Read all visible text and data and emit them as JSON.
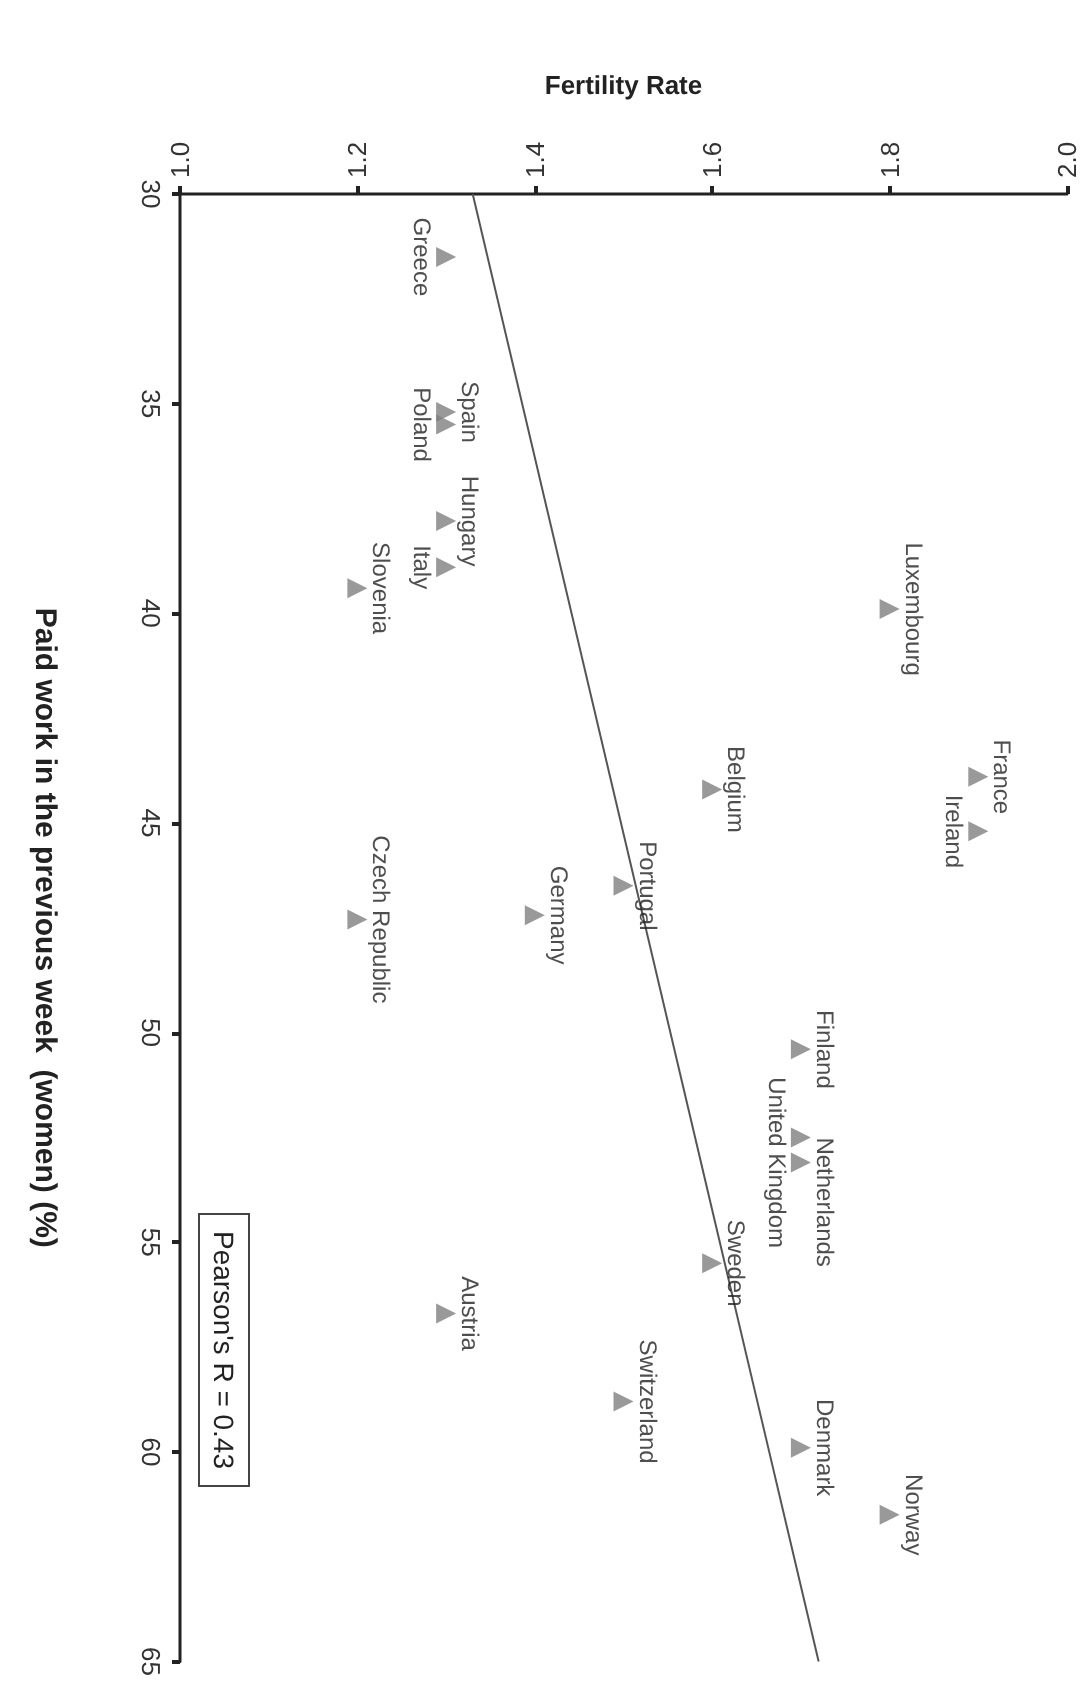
{
  "chart_data": {
    "type": "scatter",
    "xlabel": "Fertility Rate",
    "ylabel": "Paid work in the previous week  (women) (%)",
    "xlim": [
      1,
      2
    ],
    "xticks": [
      {
        "value": 1,
        "label": "1.0"
      },
      1.2,
      1.4,
      1.6,
      1.8,
      {
        "value": 2,
        "label": "2.0"
      }
    ],
    "ylim": [
      65,
      30
    ],
    "yticks": [
      30,
      35,
      40,
      45,
      50,
      55,
      60,
      65
    ],
    "grid": false,
    "marker": "triangle",
    "series": [
      {
        "color": "#7f7f7f",
        "x": [
          1.3,
          1.3,
          1.3,
          1.3,
          1.3,
          1.2,
          1.8,
          1.9,
          1.9,
          1.6,
          1.5,
          1.4,
          1.2,
          1.7,
          1.7,
          1.7,
          1.6,
          1.3,
          1.5,
          1.7,
          1.8
        ],
        "values": [
          31.5,
          35.2,
          35.5,
          37.8,
          38.9,
          39.4,
          39.9,
          43.9,
          45.2,
          44.2,
          46.5,
          47.2,
          47.3,
          50.4,
          52.5,
          53.1,
          55.5,
          56.7,
          58.8,
          59.9,
          61.5
        ]
      },
      {
        "type": "line",
        "color": "#555555",
        "marker": "none",
        "x": [
          1.33,
          1.72
        ],
        "values": [
          30,
          65
        ]
      }
    ],
    "annotations": [
      {
        "text": "Greece",
        "x": 1.3,
        "y": 31.5
      },
      {
        "text": "Spain",
        "x": 1.3,
        "y": 35.2
      },
      {
        "text": "Poland",
        "x": 1.3,
        "y": 35.5
      },
      {
        "text": "Hungary",
        "x": 1.3,
        "y": 37.8
      },
      {
        "text": "Italy",
        "x": 1.3,
        "y": 38.9
      },
      {
        "text": "Slovenia",
        "x": 1.2,
        "y": 39.4
      },
      {
        "text": "Luxembourg",
        "x": 1.8,
        "y": 39.9
      },
      {
        "text": "France",
        "x": 1.9,
        "y": 43.9
      },
      {
        "text": "Ireland",
        "x": 1.9,
        "y": 45.2
      },
      {
        "text": "Belgium",
        "x": 1.6,
        "y": 44.2
      },
      {
        "text": "Portugal",
        "x": 1.5,
        "y": 46.5
      },
      {
        "text": "Germany",
        "x": 1.4,
        "y": 47.2
      },
      {
        "text": "Czech Republic",
        "x": 1.2,
        "y": 47.3
      },
      {
        "text": "Finland",
        "x": 1.7,
        "y": 50.4
      },
      {
        "text": "Netherlands",
        "x": 1.7,
        "y": 52.5
      },
      {
        "text": "United Kingdom",
        "x": 1.7,
        "y": 53.1
      },
      {
        "text": "Sweden",
        "x": 1.6,
        "y": 55.5
      },
      {
        "text": "Austria",
        "x": 1.3,
        "y": 56.7
      },
      {
        "text": "Switzerland",
        "x": 1.5,
        "y": 58.8
      },
      {
        "text": "Denmark",
        "x": 1.7,
        "y": 59.9
      },
      {
        "text": "Norway",
        "x": 1.8,
        "y": 61.5
      },
      "Pearson's R = 0.43"
    ]
  }
}
